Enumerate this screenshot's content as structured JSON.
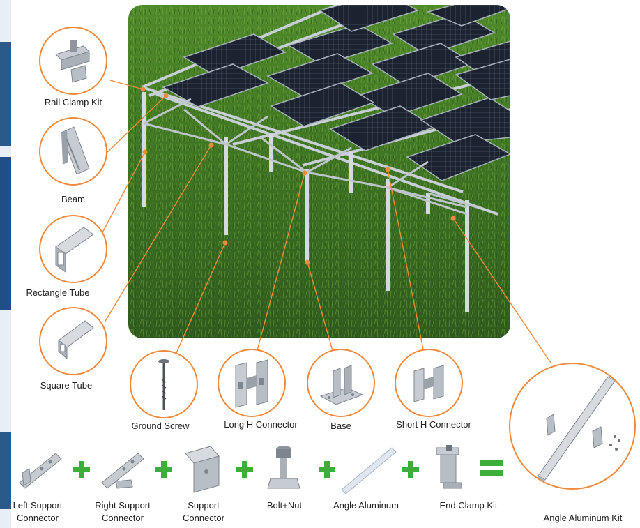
{
  "colors": {
    "accent": "#f08a3a",
    "plus_green": "#3dae3a",
    "grass_dark": "#2f5a1d",
    "grass_light": "#6fa33a",
    "band_blue": "#1f4f86"
  },
  "components": {
    "rail_clamp_kit": "Rail Clamp Kit",
    "beam": "Beam",
    "rectangle_tube": "Rectangle Tube",
    "square_tube": "Square Tube",
    "ground_screw": "Ground Screw",
    "long_h_connector": "Long H Connector",
    "base": "Base",
    "short_h_connector": "Short H Connector"
  },
  "kit_parts": {
    "left_support_connector": "Left Support Connector",
    "right_support_connector": "Right Support Connector",
    "support_connector": "Support Connector",
    "bolt_nut": "Bolt+Nut",
    "angle_aluminum": "Angle Aluminum",
    "end_clamp_kit": "End Clamp Kit"
  },
  "kit_result": "Angle Aluminum Kit",
  "icons": [
    "plus-icon",
    "equals-icon"
  ]
}
